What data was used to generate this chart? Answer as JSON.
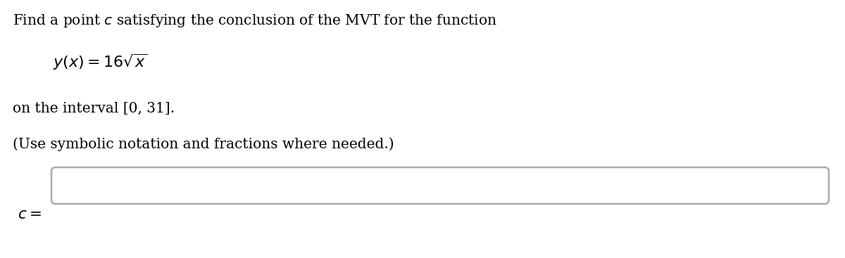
{
  "line1": "Find a point $c$ satisfying the conclusion of the MVT for the function",
  "line2": "$y(x) = 16\\sqrt{x}$",
  "line3": "on the interval [0, 31].",
  "line4": "(Use symbolic notation and fractions where needed.)",
  "label_c": "$c =$",
  "bg_color": "#ffffff",
  "text_color": "#000000",
  "box_border_color": "#aaaaaa",
  "font_size_main": 14.5,
  "font_size_formula": 16,
  "fig_width": 12.0,
  "fig_height": 3.67,
  "dpi": 100
}
